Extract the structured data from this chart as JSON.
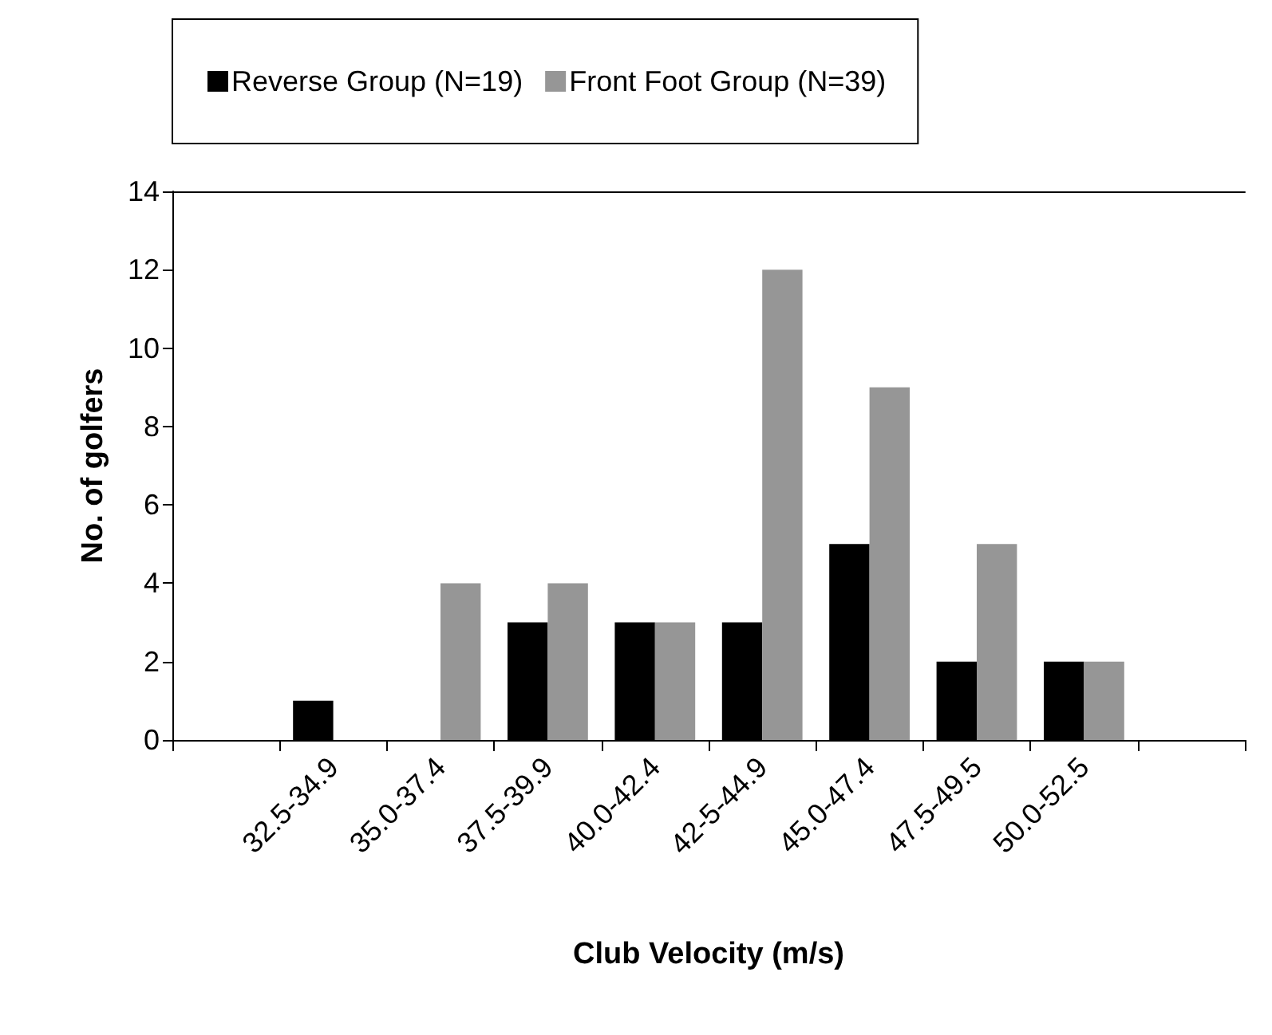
{
  "chart_data": {
    "type": "bar",
    "xlabel": "Club Velocity (m/s)",
    "ylabel": "No. of golfers",
    "categories": [
      null,
      "32.5-34.9",
      "35.0-37.4",
      "37.5-39.9",
      "40.0-42.4",
      "42-5-44.9",
      "45.0-47.4",
      "47.5-49.5",
      "50.0-52.5",
      null
    ],
    "series": [
      {
        "name": "Reverse Group (N=19)",
        "color": "#000000",
        "values": [
          null,
          1,
          0,
          3,
          3,
          3,
          5,
          2,
          2,
          null
        ]
      },
      {
        "name": "Front Foot Group (N=39)",
        "color": "#969696",
        "values": [
          null,
          0,
          4,
          4,
          3,
          12,
          9,
          5,
          2,
          null
        ]
      }
    ],
    "ylim": [
      0,
      14
    ],
    "yticks": [
      0,
      2,
      4,
      6,
      8,
      10,
      12,
      14
    ],
    "grid": false,
    "legend": "top"
  }
}
